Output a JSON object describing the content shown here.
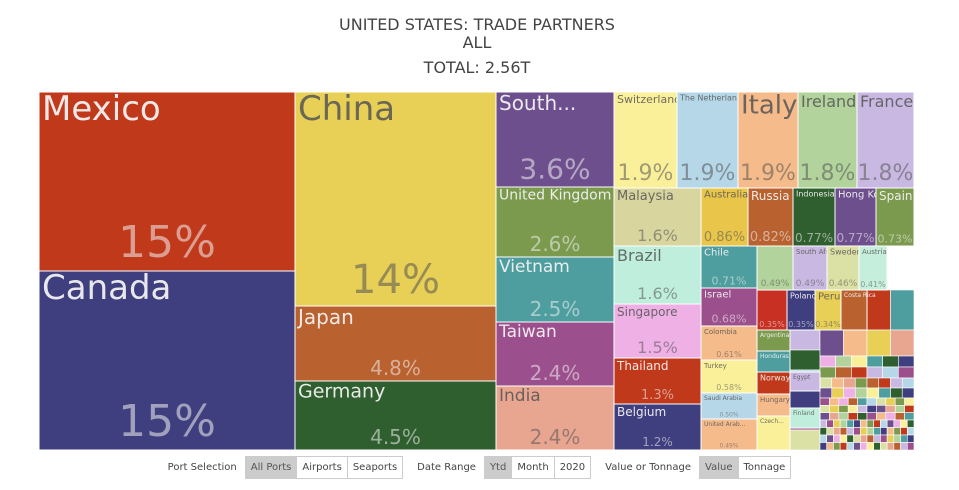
{
  "chart_data": {
    "type": "treemap",
    "title": "UNITED STATES: TRADE PARTNERS",
    "subtitle": "ALL",
    "total_label": "TOTAL: 2.56T",
    "categories": [
      "Mexico",
      "Canada",
      "China",
      "Japan",
      "Germany",
      "South...",
      "United Kingdom",
      "Vietnam",
      "Taiwan",
      "India",
      "Switzerland",
      "The Netherlands",
      "Italy",
      "Ireland",
      "France",
      "Malaysia",
      "Australia",
      "Russia",
      "Indonesia",
      "Hong Kong",
      "Spain",
      "Brazil",
      "Chile",
      null,
      "South Africa",
      "Sweden",
      "Austria",
      "Singapore",
      "Israel",
      null,
      "Poland",
      "Peru",
      "Costa Rica",
      "Thailand",
      "Belgium",
      "Colombia",
      "Turkey",
      "Saudi Arabia",
      "United Arab...",
      "Argentina",
      "Honduras",
      "Norway",
      "Hungary",
      "Czech...",
      "Egypt",
      "Finland"
    ],
    "values": [
      15,
      15,
      14,
      4.8,
      4.5,
      3.6,
      2.6,
      2.5,
      2.4,
      2.4,
      1.9,
      1.9,
      1.9,
      1.8,
      1.8,
      1.6,
      0.86,
      0.82,
      0.77,
      0.77,
      0.73,
      1.6,
      0.71,
      0.49,
      0.49,
      0.46,
      0.41,
      1.5,
      0.68,
      0.35,
      0.35,
      0.34,
      null,
      1.3,
      1.2,
      0.61,
      0.58,
      0.5,
      0.49,
      null,
      null,
      null,
      null,
      null,
      null,
      null
    ],
    "value_labels": [
      "15%",
      "15%",
      "14%",
      "4.8%",
      "4.5%",
      "3.6%",
      "2.6%",
      "2.5%",
      "2.4%",
      "2.4%",
      "1.9%",
      "1.9%",
      "1.9%",
      "1.8%",
      "1.8%",
      "1.6%",
      "0.86%",
      "0.82%",
      "0.77%",
      "0.77%",
      "0.73%",
      "1.6%",
      "0.71%",
      "0.49%",
      "0.49%",
      "0.46%",
      "0.41%",
      "1.5%",
      "0.68%",
      "0.35%",
      "0.35%",
      "0.34%",
      null,
      "1.3%",
      "1.2%",
      "0.61%",
      "0.58%",
      "0.50%",
      "0.49%",
      null,
      null,
      null,
      null,
      null,
      null,
      null
    ],
    "colors": [
      "#c0391b",
      "#3f3f7f",
      "#e8cf55",
      "#b9612f",
      "#2f5f2f",
      "#6d4f8d",
      "#7b9a4e",
      "#4e9ea0",
      "#9c4f8d",
      "#e8a58f",
      "#fbf09a",
      "#b5d7e8",
      "#f6bb8a",
      "#b2d39c",
      "#c9b8e2",
      "#d9d59e",
      "#e9c64a",
      "#b9612f",
      "#2f5f2f",
      "#6d4f8d",
      "#7b9a4e",
      "#bfeedd",
      "#4e9ea0",
      "#b2d39c",
      "#c9b8e2",
      "#dbe0a5",
      "#c6eedc",
      "#eeb0e5",
      "#9c4f8d",
      "#c83024",
      "#3f3f7f",
      "#e8cf55",
      "#b9612f",
      "#c0391b",
      "#3f3f7f",
      "#f6bb8a",
      "#fbf09a",
      "#b5d7e8",
      "#f6bb8a",
      "#7b9a4e",
      "#4e9ea0",
      "#c0391b",
      "#f6bb8a",
      "#fbf09a",
      "#c9b8e2",
      "#bfeedd"
    ]
  },
  "controls": [
    {
      "label": "Port Selection",
      "options": [
        "All Ports",
        "Airports",
        "Seaports"
      ],
      "selected": 0
    },
    {
      "label": "Date Range",
      "options": [
        "Ytd",
        "Month",
        "2020"
      ],
      "selected": 0
    },
    {
      "label": "Value or Tonnage",
      "options": [
        "Value",
        "Tonnage"
      ],
      "selected": 0
    }
  ]
}
